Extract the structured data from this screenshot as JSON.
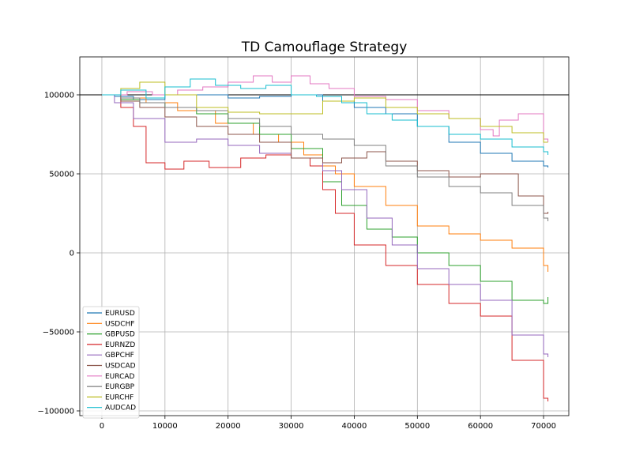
{
  "chart_data": {
    "type": "line",
    "title": "TD Camouflage Strategy",
    "xlabel": "",
    "ylabel": "",
    "xlim": [
      -3500,
      74000
    ],
    "ylim": [
      -103000,
      124000
    ],
    "xticks": [
      0,
      10000,
      20000,
      30000,
      40000,
      50000,
      60000,
      70000
    ],
    "xtick_labels": [
      "0",
      "10000",
      "20000",
      "30000",
      "40000",
      "50000",
      "60000",
      "70000"
    ],
    "yticks": [
      -100000,
      -50000,
      0,
      50000,
      100000
    ],
    "ytick_labels": [
      "−100000",
      "−50000",
      "0",
      "50000",
      "100000"
    ],
    "grid": true,
    "legend": "lower-left",
    "reference_line": 100000,
    "series": [
      {
        "name": "EURUSD",
        "color": "#1f77b4",
        "x": [
          0,
          2000,
          5000,
          10000,
          15000,
          20000,
          25000,
          30000,
          35000,
          40000,
          45000,
          50000,
          55000,
          60000,
          65000,
          70000,
          70700
        ],
        "y": [
          100000,
          99000,
          97000,
          100000,
          100000,
          98000,
          99000,
          100000,
          96000,
          92000,
          88000,
          80000,
          70000,
          63000,
          58000,
          55000,
          54000
        ]
      },
      {
        "name": "USDCHF",
        "color": "#ff7f0e",
        "x": [
          0,
          3000,
          7000,
          12000,
          18000,
          24000,
          28000,
          32000,
          35000,
          37000,
          40000,
          45000,
          50000,
          55000,
          60000,
          65000,
          70000,
          70700
        ],
        "y": [
          100000,
          98000,
          95000,
          90000,
          82000,
          75000,
          70000,
          62000,
          55000,
          50000,
          42000,
          30000,
          17000,
          12000,
          8000,
          3000,
          -8000,
          -12000
        ]
      },
      {
        "name": "GBPUSD",
        "color": "#2ca02c",
        "x": [
          0,
          3000,
          6000,
          10000,
          15000,
          20000,
          25000,
          30000,
          35000,
          38000,
          42000,
          46000,
          50000,
          55000,
          60000,
          65000,
          70000,
          70700
        ],
        "y": [
          100000,
          97000,
          95000,
          92000,
          88000,
          82000,
          75000,
          66000,
          45000,
          30000,
          15000,
          10000,
          0,
          -8000,
          -18000,
          -30000,
          -32000,
          -28000
        ]
      },
      {
        "name": "EURNZD",
        "color": "#d62728",
        "x": [
          0,
          3000,
          5000,
          7000,
          10000,
          13000,
          17000,
          22000,
          26000,
          30000,
          33000,
          35000,
          37000,
          40000,
          45000,
          50000,
          55000,
          60000,
          65000,
          70000,
          70700
        ],
        "y": [
          100000,
          92000,
          80000,
          57000,
          53000,
          58000,
          54000,
          60000,
          62000,
          60000,
          55000,
          40000,
          25000,
          5000,
          -8000,
          -20000,
          -32000,
          -40000,
          -68000,
          -92000,
          -94000
        ]
      },
      {
        "name": "GBPCHF",
        "color": "#9467bd",
        "x": [
          0,
          2000,
          5000,
          10000,
          15000,
          20000,
          25000,
          30000,
          35000,
          38000,
          42000,
          46000,
          50000,
          55000,
          60000,
          65000,
          70000,
          70700
        ],
        "y": [
          100000,
          95000,
          85000,
          70000,
          72000,
          68000,
          63000,
          60000,
          52000,
          40000,
          22000,
          5000,
          -10000,
          -20000,
          -30000,
          -52000,
          -64000,
          -66000
        ]
      },
      {
        "name": "USDCAD",
        "color": "#8c564b",
        "x": [
          0,
          3000,
          6000,
          10000,
          15000,
          20000,
          25000,
          30000,
          35000,
          38000,
          42000,
          45000,
          50000,
          55000,
          60000,
          63000,
          66000,
          70000,
          70700
        ],
        "y": [
          100000,
          96000,
          92000,
          86000,
          80000,
          75000,
          70000,
          60000,
          57000,
          60000,
          64000,
          58000,
          52000,
          48000,
          50000,
          50000,
          36000,
          25000,
          26000
        ]
      },
      {
        "name": "EURCAD",
        "color": "#e377c2",
        "x": [
          0,
          4000,
          8000,
          12000,
          16000,
          20000,
          24000,
          27000,
          30000,
          33000,
          36000,
          40000,
          45000,
          50000,
          55000,
          60000,
          62000,
          63000,
          66000,
          70000,
          70700
        ],
        "y": [
          100000,
          102000,
          100000,
          103000,
          105000,
          108000,
          112000,
          108000,
          112000,
          107000,
          104000,
          99000,
          97000,
          90000,
          85000,
          78000,
          74000,
          84000,
          88000,
          72000,
          70000
        ]
      },
      {
        "name": "EURGBP",
        "color": "#7f7f7f",
        "x": [
          0,
          3000,
          6000,
          10000,
          15000,
          20000,
          25000,
          30000,
          35000,
          40000,
          45000,
          50000,
          55000,
          60000,
          65000,
          70000,
          70700
        ],
        "y": [
          100000,
          98000,
          95000,
          92000,
          90000,
          85000,
          80000,
          75000,
          72000,
          68000,
          55000,
          48000,
          42000,
          38000,
          30000,
          22000,
          20000
        ]
      },
      {
        "name": "EURCHF",
        "color": "#bcbd22",
        "x": [
          0,
          3000,
          6000,
          10000,
          15000,
          20000,
          25000,
          30000,
          35000,
          40000,
          45000,
          50000,
          55000,
          60000,
          65000,
          70000,
          70700
        ],
        "y": [
          100000,
          104000,
          108000,
          100000,
          92000,
          89000,
          88000,
          88000,
          96000,
          98000,
          92000,
          88000,
          85000,
          80000,
          76000,
          70000,
          70000
        ]
      },
      {
        "name": "AUDCAD",
        "color": "#17becf",
        "x": [
          0,
          3000,
          7000,
          10000,
          14000,
          18000,
          22000,
          26000,
          30000,
          34000,
          38000,
          42000,
          46000,
          50000,
          55000,
          60000,
          65000,
          70000,
          70700
        ],
        "y": [
          100000,
          103000,
          98000,
          105000,
          110000,
          106000,
          104000,
          106000,
          100000,
          99000,
          95000,
          88000,
          84000,
          80000,
          75000,
          72000,
          67000,
          64000,
          62000
        ]
      }
    ]
  }
}
